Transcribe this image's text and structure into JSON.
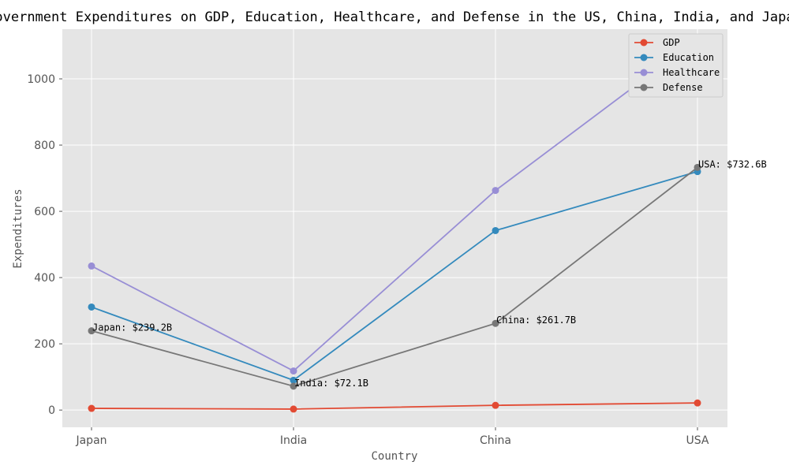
{
  "chart_data": {
    "type": "line",
    "title": "Government Expenditures on GDP, Education, Healthcare, and Defense in the US, China, India, and Japan",
    "xlabel": "Country",
    "ylabel": "Expenditures",
    "categories": [
      "Japan",
      "India",
      "China",
      "USA"
    ],
    "ylim": [
      -52,
      1150
    ],
    "yticks": [
      0,
      200,
      400,
      600,
      800,
      1000
    ],
    "grid": true,
    "legend_position": "top-right",
    "series": [
      {
        "name": "GDP",
        "color": "#E24A33",
        "values": [
          5.1,
          2.9,
          14.3,
          21.4
        ]
      },
      {
        "name": "Education",
        "color": "#348ABD",
        "values": [
          311,
          90,
          542,
          720
        ]
      },
      {
        "name": "Healthcare",
        "color": "#988ED5",
        "values": [
          435,
          118,
          663,
          1120
        ]
      },
      {
        "name": "Defense",
        "color": "#777777",
        "values": [
          239.2,
          72.1,
          261.7,
          732.6
        ]
      }
    ],
    "annotations": [
      {
        "category": "Japan",
        "value": 239.2,
        "text": "Japan: $239.2B"
      },
      {
        "category": "India",
        "value": 72.1,
        "text": "India: $72.1B"
      },
      {
        "category": "China",
        "value": 261.7,
        "text": "China: $261.7B"
      },
      {
        "category": "USA",
        "value": 732.6,
        "text": "USA: $732.6B"
      }
    ]
  }
}
